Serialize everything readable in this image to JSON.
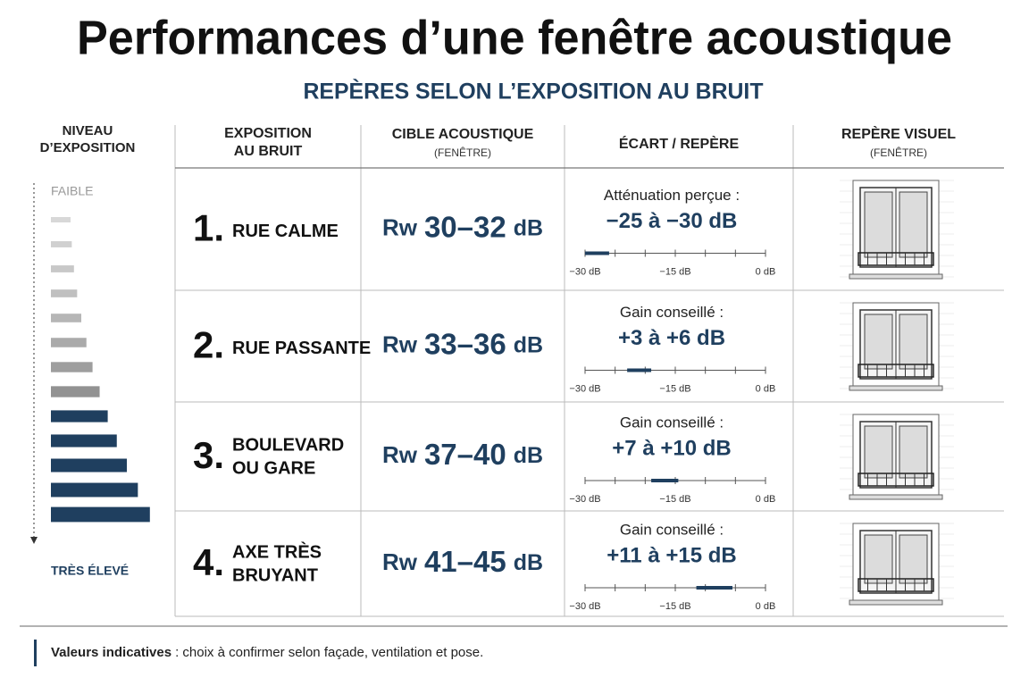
{
  "header": {
    "title": "Performances d’une fenêtre acoustique",
    "subtitle": "REPÈRES SELON L’EXPOSITION AU BRUIT"
  },
  "exposure_level": {
    "title": [
      "NIVEAU",
      "D’EXPOSITION"
    ],
    "low": "FAIBLE",
    "high": "TRÈS ÉLEVÉ"
  },
  "table": {
    "columns": [
      {
        "title": [
          "EXPOSITION",
          "AU BRUIT"
        ]
      },
      {
        "title": [
          "CIBLE ACOUSTIQUE"
        ],
        "note": "(FENÊTRE)"
      },
      {
        "title": [
          "ÉCART / REPÈRE"
        ]
      },
      {
        "title": [
          "REPÈRE VISUEL"
        ],
        "note": "(FENÊTRE)"
      }
    ],
    "scale": {
      "lim": [
        -30,
        0
      ],
      "ticks": [
        -30,
        -25,
        -20,
        -15,
        -10,
        -5,
        0
      ],
      "labels": [
        {
          "value": -30,
          "label": "−30 dB"
        },
        {
          "value": -15,
          "label": "−15 dB"
        },
        {
          "value": 0,
          "label": "0 dB"
        }
      ]
    },
    "rows": [
      {
        "number": "1.",
        "label": [
          "RUE CALME"
        ],
        "rw": "Rw",
        "target": "30–32",
        "unit": "dB",
        "caption": "Atténuation perçue :",
        "gap": "−25 à −30 dB",
        "marker": [
          -30,
          -26
        ]
      },
      {
        "number": "2.",
        "label": [
          "RUE PASSANTE"
        ],
        "rw": "Rw",
        "target": "33–36",
        "unit": "dB",
        "caption": "Gain conseillé :",
        "gap": "+3 à +6 dB",
        "marker": [
          -23,
          -19
        ]
      },
      {
        "number": "3.",
        "label": [
          "BOULEVARD",
          "OU GARE"
        ],
        "rw": "Rw",
        "target": "37–40",
        "unit": "dB",
        "caption": "Gain conseillé :",
        "gap": "+7 à +10 dB",
        "marker": [
          -19,
          -14.5
        ]
      },
      {
        "number": "4.",
        "label": [
          "AXE TRÈS",
          "BRUYANT"
        ],
        "rw": "Rw",
        "target": "41–45",
        "unit": "dB",
        "caption": "Gain conseillé :",
        "gap": "+11 à +15 dB",
        "marker": [
          -11.5,
          -5.5
        ]
      }
    ]
  },
  "footer": {
    "bold": "Valeurs indicatives",
    "text": ": choix à confirmer selon façade, ventilation et pose."
  }
}
